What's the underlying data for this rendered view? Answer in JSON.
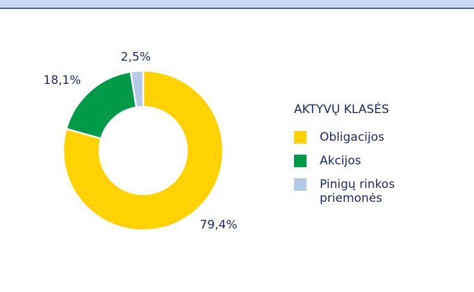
{
  "chart_data": {
    "type": "donut",
    "categories": [
      "Obligacijos",
      "Akcijos",
      "Pinigų rinkos priemonės"
    ],
    "values": [
      79.4,
      18.1,
      2.5
    ],
    "value_labels": [
      "79,4%",
      "18,1%",
      "2,5%"
    ],
    "colors": [
      "#FFD200",
      "#009B48",
      "#B4C8E8"
    ],
    "legend_title": "AKTYVŲ KLASĖS",
    "legend": "right"
  }
}
